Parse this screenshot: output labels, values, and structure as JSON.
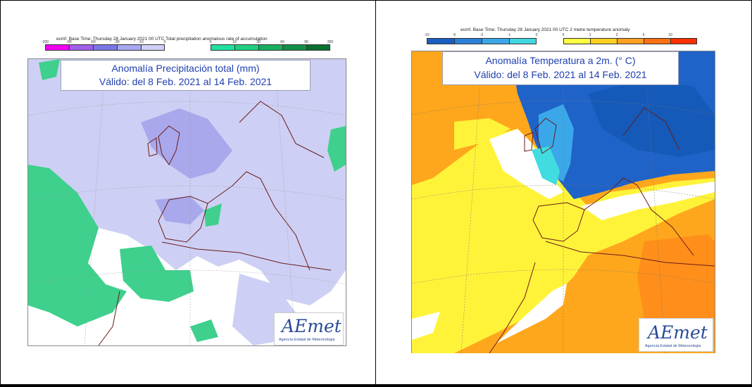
{
  "left_panel": {
    "header": "ecmf. Base Time: Thursday 28 January 2021 00 UTC Total precipitation anomalous rate of accumulation",
    "scale_neg_labels": [
      "-200",
      "-90",
      "-60",
      "-30",
      "-10",
      "0"
    ],
    "scale_pos_labels": [
      "0",
      "10",
      "30",
      "60",
      "90",
      "200"
    ],
    "scale_neg_colors": [
      "#f000f0",
      "#a060e8",
      "#7a78e4",
      "#a8a8f0",
      "#cfcff6"
    ],
    "scale_pos_colors": [
      "#20e0a0",
      "#20d080",
      "#18b060",
      "#109048",
      "#087030"
    ],
    "title_line1": "Anomalía Precipitación total (mm)",
    "title_line2": "Válido: del 8 Feb. 2021 al 14 Feb. 2021",
    "logo_text": "AEmet",
    "logo_sub": "Agencia Estatal de Meteorología"
  },
  "right_panel": {
    "header": "ecmf. Base Time: Thursday 28 January 2021 00 UTC 2 metre temperature anomaly",
    "scale_neg_labels": [
      "-10",
      "-5",
      "-2",
      "-1",
      "0"
    ],
    "scale_pos_labels": [
      "0",
      "1",
      "2",
      "5",
      "10"
    ],
    "scale_neg_colors": [
      "#1a5fc0",
      "#2a80d8",
      "#3aa8e8",
      "#40d8e0"
    ],
    "scale_pos_colors": [
      "#ffff40",
      "#ffd020",
      "#ffa020",
      "#ff7010",
      "#ff3000"
    ],
    "title_line1": "Anomalía Temperatura a 2m. (° C)",
    "title_line2": "Válido: del 8 Feb. 2021 al 14 Feb. 2021",
    "logo_text": "AEmet",
    "logo_sub": "Agencia Estatal de Meteorología"
  }
}
